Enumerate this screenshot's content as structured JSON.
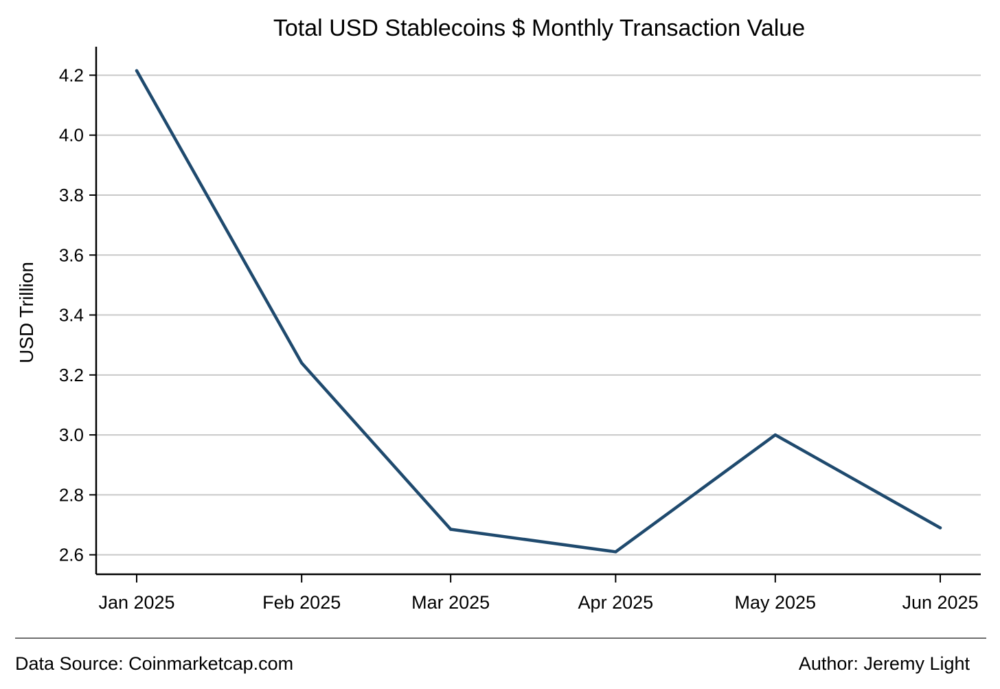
{
  "chart_data": {
    "type": "line",
    "title": "Total USD Stablecoins $ Monthly Transaction Value",
    "xlabel": "",
    "ylabel": "USD Trillion",
    "categories": [
      "Jan 2025",
      "Feb 2025",
      "Mar 2025",
      "Apr 2025",
      "May 2025",
      "Jun 2025"
    ],
    "x_dates": [
      "2025-01-01",
      "2025-02-01",
      "2025-03-01",
      "2025-04-01",
      "2025-05-01",
      "2025-06-01"
    ],
    "series": [
      {
        "values": [
          4.215,
          3.24,
          2.685,
          2.61,
          3.0,
          2.69
        ],
        "color": "#1f4a6e"
      }
    ],
    "yticks": [
      "2.6",
      "2.8",
      "3.0",
      "3.2",
      "3.4",
      "3.6",
      "3.8",
      "4.0",
      "4.2"
    ],
    "ylim": [
      2.535,
      4.295
    ],
    "grid": "horizontal",
    "grid_color": "#c8c8c8",
    "legend": "none"
  },
  "footer": {
    "source": "Data Source: Coinmarketcap.com",
    "author": "Author: Jeremy Light"
  }
}
